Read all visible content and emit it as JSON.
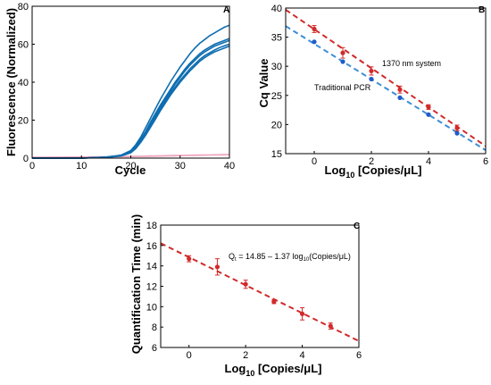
{
  "colors": {
    "blue": "#0e6db0",
    "pink": "#f2a6bd",
    "red": "#d12a2a",
    "dblue": "#1f5bc9",
    "lightblue": "#3b8ed6"
  },
  "chart_data": [
    {
      "panel": "A",
      "type": "line",
      "xlabel": "Cycle",
      "ylabel": "Fluorescence (Normalized)",
      "xlim": [
        0,
        40
      ],
      "ylim": [
        0,
        80
      ],
      "xticks": [
        "0",
        "10",
        "20",
        "30",
        "40"
      ],
      "yticks": [
        "0",
        "20",
        "40",
        "60",
        "80"
      ],
      "x": [
        0,
        5,
        10,
        15,
        18,
        20,
        21,
        22,
        23,
        24,
        25,
        26,
        27,
        28,
        29,
        30,
        31,
        32,
        33,
        34,
        35,
        36,
        37,
        38,
        39,
        40
      ],
      "series": [
        {
          "color": "blue",
          "values": [
            0,
            0,
            0,
            0.5,
            1.5,
            4,
            7,
            11,
            16,
            21,
            26,
            31,
            35.5,
            40,
            44,
            48,
            51.5,
            55,
            58,
            60.5,
            62.5,
            64.5,
            66,
            67.5,
            69,
            70
          ]
        },
        {
          "color": "blue",
          "values": [
            0,
            0,
            0,
            0.5,
            1.5,
            3.5,
            6,
            10,
            14,
            19,
            23.5,
            28,
            32,
            36,
            40,
            43.5,
            47,
            50,
            52.5,
            55,
            57,
            58.5,
            60,
            61,
            62,
            63
          ]
        },
        {
          "color": "blue",
          "values": [
            0,
            0,
            0,
            0.5,
            1.4,
            3.3,
            5.8,
            9.5,
            13.5,
            18,
            22.5,
            27,
            31,
            35,
            39,
            42.5,
            46,
            49,
            51.5,
            54,
            56,
            57.5,
            59,
            60,
            61,
            62
          ]
        },
        {
          "color": "blue",
          "values": [
            0,
            0,
            0,
            0.4,
            1.2,
            3,
            5.3,
            8.8,
            12.5,
            17,
            21.5,
            26,
            30,
            34,
            37.5,
            41,
            44,
            47,
            49.5,
            52,
            54,
            55.5,
            57,
            58.2,
            59.2,
            60
          ]
        },
        {
          "color": "blue",
          "values": [
            0,
            0,
            0,
            0.4,
            1.1,
            2.8,
            5,
            8.3,
            12,
            16.3,
            20.5,
            25,
            29,
            33,
            36.5,
            40,
            43,
            46,
            48.5,
            51,
            53,
            54.6,
            56,
            57,
            58,
            59
          ]
        },
        {
          "color": "pink",
          "values": [
            0.5,
            0.6,
            0.7,
            0.8,
            0.9,
            1,
            1.05,
            1.1,
            1.15,
            1.2,
            1.25,
            1.3,
            1.35,
            1.4,
            1.45,
            1.5,
            1.55,
            1.6,
            1.65,
            1.7,
            1.75,
            1.8,
            1.85,
            1.9,
            1.95,
            2
          ]
        },
        {
          "color": "pink",
          "values": [
            0.2,
            0.3,
            0.4,
            0.5,
            0.6,
            0.7,
            0.75,
            0.8,
            0.85,
            0.9,
            0.95,
            1,
            1.05,
            1.1,
            1.15,
            1.2,
            1.25,
            1.3,
            1.35,
            1.4,
            1.45,
            1.5,
            1.55,
            1.6,
            1.65,
            1.7
          ]
        }
      ]
    },
    {
      "panel": "B",
      "type": "scatter",
      "xlabel_main": "Log",
      "xlabel_sub": "10",
      "xlabel_rest": " [Copies/μL]",
      "ylabel": "Cq Value",
      "xlim": [
        -1,
        6
      ],
      "ylim": [
        15,
        40
      ],
      "xticks": [
        "0",
        "2",
        "4",
        "6"
      ],
      "yticks": [
        "15",
        "20",
        "25",
        "30",
        "35",
        "40"
      ],
      "series": [
        {
          "name": "1370 nm system",
          "color": "red",
          "x": [
            0,
            1,
            2,
            3,
            4,
            5
          ],
          "y": [
            36.4,
            32.3,
            29.2,
            26.0,
            23.0,
            19.4
          ],
          "err": [
            0.6,
            0.9,
            0.7,
            0.6,
            0.4,
            0.5
          ],
          "fit": [
            [
              -1,
              39.7
            ],
            [
              6,
              16.3
            ]
          ]
        },
        {
          "name": "Traditional PCR",
          "color": "dblue",
          "x": [
            0,
            1,
            2,
            3,
            4,
            5
          ],
          "y": [
            34.2,
            30.8,
            27.8,
            24.6,
            21.7,
            18.5
          ],
          "err": [
            0,
            0,
            0,
            0,
            0,
            0
          ],
          "fit": [
            [
              -1,
              36.9
            ],
            [
              6,
              15.6
            ]
          ]
        }
      ]
    },
    {
      "panel": "C",
      "type": "scatter",
      "xlabel_main": "Log",
      "xlabel_sub": "10",
      "xlabel_rest": " [Copies/μL]",
      "ylabel": "Quantification Time (min)",
      "xlim": [
        -1,
        6
      ],
      "ylim": [
        6,
        18
      ],
      "xticks": [
        "0",
        "2",
        "4",
        "6"
      ],
      "yticks": [
        "6",
        "8",
        "10",
        "12",
        "14",
        "16",
        "18"
      ],
      "equation": {
        "lhs_main": "Q",
        "lhs_sub": "t",
        "mid": " = 14.85 – 1.37 log",
        "mid_sub": "10",
        "rhs": "(Copies/μL)"
      },
      "series": [
        {
          "color": "red",
          "x": [
            0,
            1,
            2,
            3,
            4,
            5
          ],
          "y": [
            14.7,
            13.9,
            12.2,
            10.5,
            9.3,
            8.1
          ],
          "err": [
            0.3,
            0.8,
            0.4,
            0.2,
            0.6,
            0.3
          ],
          "fit": [
            [
              -1,
              16.22
            ],
            [
              6,
              6.63
            ]
          ]
        }
      ]
    }
  ]
}
